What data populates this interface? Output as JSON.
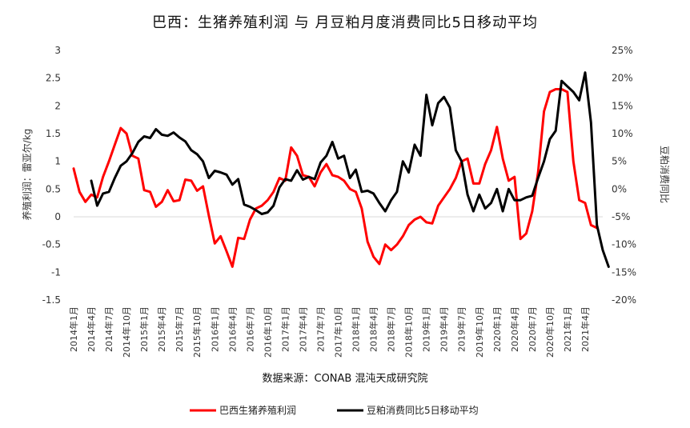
{
  "chart_data": {
    "type": "line",
    "title": "巴西：生猪养殖利润    与 月豆粕月度消费同比5日移动平均",
    "source": "数据来源：CONAB 混沌天成研究院",
    "ylabel_left": "养殖利润：雷亚尔/kg",
    "ylabel_right": "豆粕消费同比",
    "ylim_left": [
      -1.5,
      3
    ],
    "left_ticks": [
      "3",
      "2.5",
      "2",
      "1.5",
      "1",
      "0.5",
      "0",
      "-0.5",
      "-1",
      "-1.5"
    ],
    "ylim_right": [
      -20,
      25
    ],
    "right_ticks": [
      "25%",
      "20%",
      "15%",
      "10%",
      "5%",
      "0%",
      "-5%",
      "-10%",
      "-15%",
      "-20%"
    ],
    "x_tick_labels": [
      "2014年1月",
      "2014年4月",
      "2014年7月",
      "2014年10月",
      "2015年1月",
      "2015年4月",
      "2015年7月",
      "2015年10月",
      "2016年1月",
      "2016年4月",
      "2016年7月",
      "2016年10月",
      "2017年1月",
      "2017年4月",
      "2017年7月",
      "2017年10月",
      "2018年1月",
      "2018年4月",
      "2018年7月",
      "2018年10月",
      "2019年1月",
      "2019年4月",
      "2019年7月",
      "2019年10月",
      "2020年1月",
      "2020年4月",
      "2020年7月",
      "2020年10月",
      "2021年1月",
      "2021年4月"
    ],
    "legend_position": "bottom",
    "series": [
      {
        "name": "巴西生猪养殖利润",
        "axis": "left",
        "color": "#ff0000",
        "values": [
          0.87,
          0.45,
          0.27,
          0.4,
          0.35,
          0.72,
          1.0,
          1.3,
          1.6,
          1.5,
          1.1,
          1.05,
          0.48,
          0.45,
          0.18,
          0.27,
          0.48,
          0.28,
          0.3,
          0.67,
          0.65,
          0.47,
          0.55,
          0.02,
          -0.48,
          -0.35,
          -0.62,
          -0.9,
          -0.38,
          -0.4,
          -0.05,
          0.15,
          0.2,
          0.3,
          0.45,
          0.7,
          0.65,
          1.25,
          1.1,
          0.75,
          0.72,
          0.55,
          0.8,
          0.95,
          0.75,
          0.72,
          0.65,
          0.5,
          0.45,
          0.15,
          -0.45,
          -0.72,
          -0.85,
          -0.5,
          -0.6,
          -0.5,
          -0.35,
          -0.15,
          -0.05,
          0.0,
          -0.1,
          -0.12,
          0.2,
          0.35,
          0.5,
          0.7,
          1.0,
          1.05,
          0.6,
          0.6,
          0.95,
          1.2,
          1.62,
          1.05,
          0.65,
          0.72,
          -0.4,
          -0.3,
          0.1,
          0.8,
          1.9,
          2.25,
          2.3,
          2.3,
          2.25,
          1.0,
          0.3,
          0.25,
          -0.15,
          -0.2
        ],
        "x_start": 0
      },
      {
        "name": "豆粕消费同比5日移动平均",
        "axis": "right",
        "color": "#000000",
        "values": [
          1.5,
          -3.0,
          -0.8,
          -0.5,
          2.0,
          4.2,
          5.0,
          6.5,
          8.5,
          9.5,
          9.2,
          10.8,
          9.8,
          9.6,
          10.2,
          9.3,
          8.6,
          7.0,
          6.3,
          5.0,
          2.0,
          3.3,
          3.0,
          2.6,
          0.8,
          1.8,
          -2.8,
          -3.2,
          -3.8,
          -4.5,
          -4.2,
          -3.0,
          0.3,
          1.8,
          1.5,
          3.4,
          1.7,
          2.2,
          1.8,
          4.8,
          6.0,
          8.5,
          5.5,
          6.0,
          2.0,
          3.5,
          -0.5,
          -0.3,
          -0.8,
          -2.5,
          -4.0,
          -2.0,
          -0.5,
          5.0,
          3.0,
          8.0,
          6.0,
          17.0,
          11.5,
          15.5,
          16.6,
          14.7,
          7.0,
          5.0,
          -1.0,
          -4.0,
          -1.0,
          -3.5,
          -2.5,
          0.0,
          -4.0,
          0.0,
          -2.0,
          -2.0,
          -1.5,
          -1.2,
          2.0,
          5.0,
          9.0,
          10.5,
          19.5,
          18.5,
          17.5,
          16.0,
          21.0,
          12.0,
          -6.5,
          -11.0,
          -14.0
        ],
        "x_start": 3
      }
    ],
    "n_months": 91
  }
}
